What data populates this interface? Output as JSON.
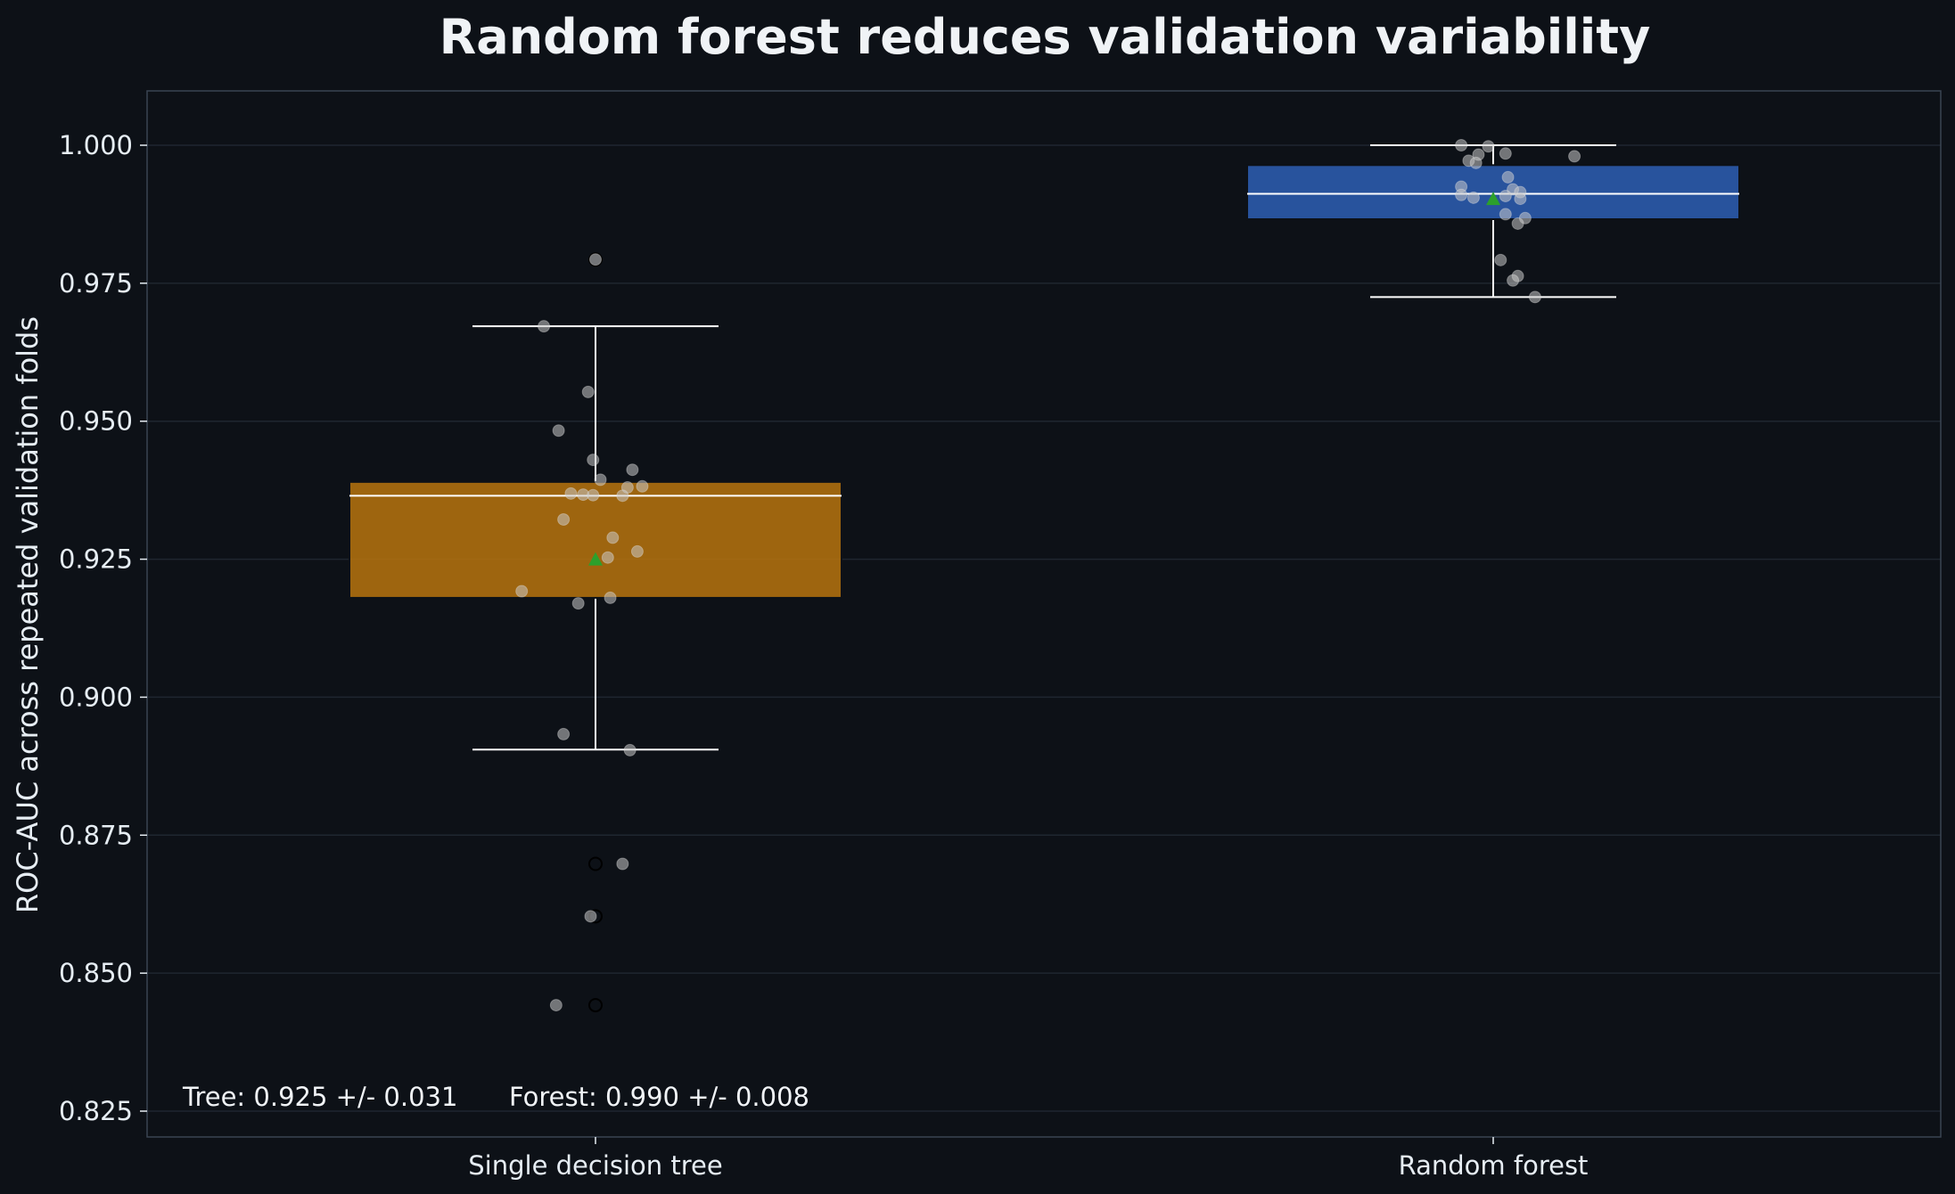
{
  "chart_data": {
    "type": "box",
    "title": "Random forest reduces validation variability",
    "xlabel": "",
    "ylabel": "ROC-AUC across repeated validation folds",
    "ylim": [
      0.82,
      1.01
    ],
    "yticks": [
      "0.825",
      "0.850",
      "0.875",
      "0.900",
      "0.925",
      "0.950",
      "0.975",
      "1.000"
    ],
    "grid": "horizontal",
    "categories": [
      "Single decision tree",
      "Random forest"
    ],
    "colors": {
      "background": "#0d1117",
      "grid": "#1f2630",
      "spine": "#3a4452",
      "whisker": "#ffffff",
      "mean_marker": "#2ca02c",
      "points": "#c8c8c8"
    },
    "series": [
      {
        "category": "Single decision tree",
        "color": "#b8740e",
        "q1": 0.918,
        "median": 0.9365,
        "q3": 0.939,
        "whisker_low": 0.8905,
        "whisker_high": 0.9672,
        "mean": 0.925,
        "fliers": [
          0.8442,
          0.8603,
          0.8698,
          0.9793
        ],
        "points": [
          0.9793,
          0.9672,
          0.9553,
          0.9483,
          0.943,
          0.9412,
          0.9394,
          0.9382,
          0.938,
          0.9369,
          0.9367,
          0.9366,
          0.9365,
          0.9322,
          0.9289,
          0.9264,
          0.9253,
          0.9192,
          0.918,
          0.917,
          0.8933,
          0.8904,
          0.8698,
          0.8603,
          0.8442
        ],
        "jitter": [
          0.0,
          -0.21,
          -0.03,
          -0.15,
          -0.01,
          0.15,
          0.02,
          0.19,
          0.13,
          -0.1,
          -0.05,
          -0.01,
          0.11,
          -0.13,
          0.07,
          0.17,
          0.05,
          -0.3,
          0.06,
          -0.07,
          -0.13,
          0.14,
          0.11,
          -0.02,
          -0.16
        ]
      },
      {
        "category": "Random forest",
        "color": "#2e5fb5",
        "q1": 0.9866,
        "median": 0.9912,
        "q3": 0.9964,
        "whisker_low": 0.9725,
        "whisker_high": 1.0,
        "mean": 0.9903,
        "fliers": [],
        "points": [
          1.0,
          0.9998,
          0.9985,
          0.9983,
          0.998,
          0.9972,
          0.9968,
          0.9942,
          0.9925,
          0.992,
          0.9915,
          0.991,
          0.9908,
          0.9905,
          0.9903,
          0.9875,
          0.9868,
          0.9858,
          0.9792,
          0.9763,
          0.9755,
          0.9725
        ],
        "jitter": [
          -0.13,
          -0.02,
          0.05,
          -0.06,
          0.33,
          -0.1,
          -0.07,
          0.06,
          -0.13,
          0.08,
          0.11,
          -0.13,
          0.05,
          -0.08,
          0.11,
          0.05,
          0.13,
          0.1,
          0.03,
          0.1,
          0.08,
          0.17
        ]
      }
    ],
    "annotations": [
      "Tree: 0.925 +/- 0.031",
      "Forest: 0.990 +/- 0.008"
    ]
  }
}
